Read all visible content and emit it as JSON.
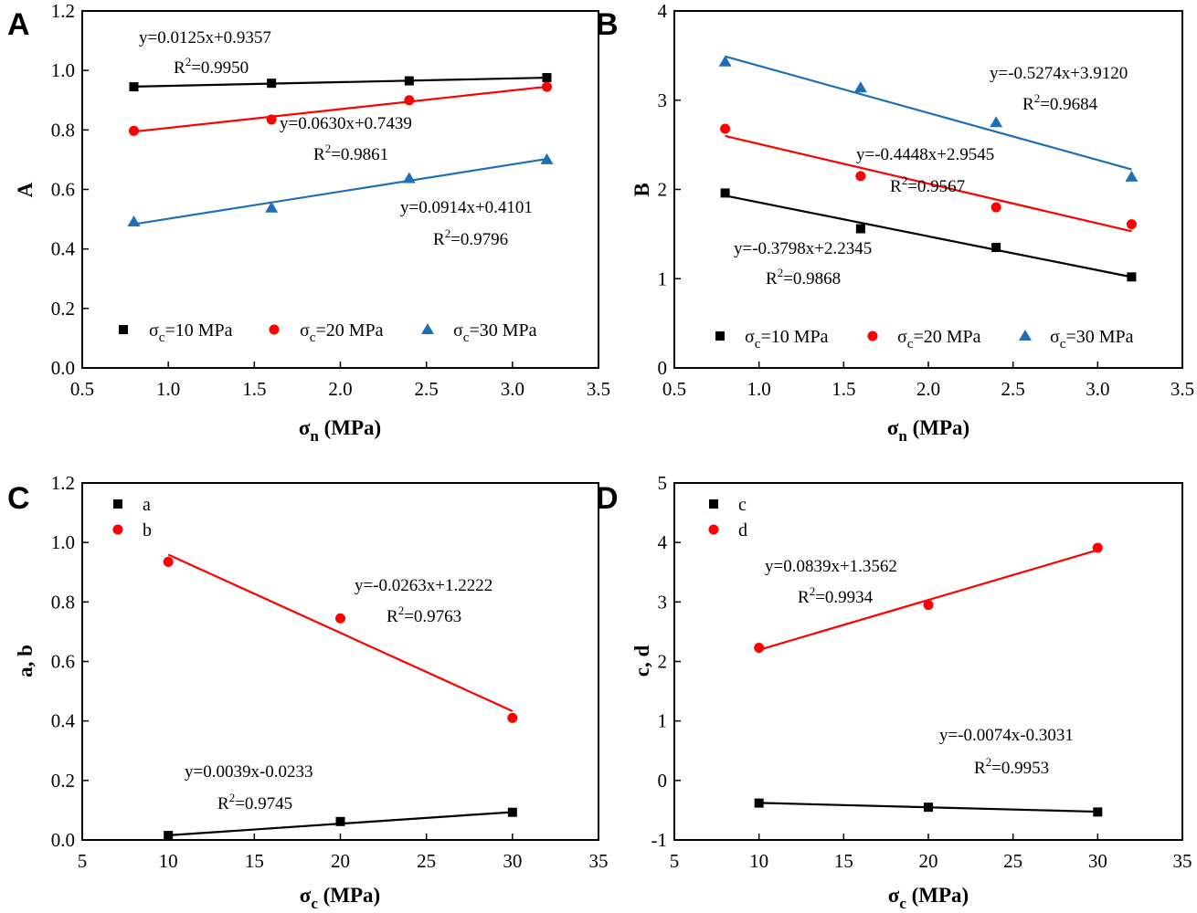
{
  "chart_data": [
    {
      "type": "scatter",
      "panel": "A",
      "xlabel": "σn (MPa)",
      "ylabel": "A",
      "xlim": [
        0.5,
        3.5
      ],
      "ylim": [
        0.0,
        1.2
      ],
      "xticks": [
        "0.5",
        "1.0",
        "1.5",
        "2.0",
        "2.5",
        "3.0",
        "3.5"
      ],
      "yticks": [
        "0.0",
        "0.2",
        "0.4",
        "0.6",
        "0.8",
        "1.0",
        "1.2"
      ],
      "legend_position": "bottom",
      "series": [
        {
          "name": "σc=10 MPa",
          "sub": "c",
          "pre": "σ",
          "post": "=10 MPa",
          "color": "#000000",
          "marker": "square",
          "x": [
            0.8,
            1.6,
            2.4,
            3.2
          ],
          "values": [
            0.945,
            0.957,
            0.965,
            0.976
          ],
          "fit": {
            "slope": 0.0125,
            "intercept": 0.9357
          },
          "equation": "y=0.0125x+0.9357",
          "r2": "=0.9950"
        },
        {
          "name": "σc=20 MPa",
          "sub": "c",
          "pre": "σ",
          "post": "=20 MPa",
          "color": "#ff0000",
          "marker": "circle",
          "x": [
            0.8,
            1.6,
            2.4,
            3.2
          ],
          "values": [
            0.797,
            0.835,
            0.9,
            0.945
          ],
          "fit": {
            "slope": 0.063,
            "intercept": 0.7439
          },
          "equation": "y=0.0630x+0.7439",
          "r2": "=0.9861"
        },
        {
          "name": "σc=30 MPa",
          "sub": "c",
          "pre": "σ",
          "post": "=30 MPa",
          "color": "#1f6fb4",
          "marker": "triangle",
          "x": [
            0.8,
            1.6,
            2.4,
            3.2
          ],
          "values": [
            0.491,
            0.538,
            0.637,
            0.7
          ],
          "fit": {
            "slope": 0.0914,
            "intercept": 0.4101
          },
          "equation": "y=0.0914x+0.4101",
          "r2": "=0.9796"
        }
      ]
    },
    {
      "type": "scatter",
      "panel": "B",
      "xlabel": "σn (MPa)",
      "ylabel": "B",
      "xlim": [
        0.5,
        3.5
      ],
      "ylim": [
        0,
        4
      ],
      "xticks": [
        "0.5",
        "1.0",
        "1.5",
        "2.0",
        "2.5",
        "3.0",
        "3.5"
      ],
      "yticks": [
        "0",
        "1",
        "2",
        "3",
        "4"
      ],
      "legend_position": "bottom",
      "series": [
        {
          "name": "σc=10 MPa",
          "sub": "c",
          "pre": "σ",
          "post": "=10 MPa",
          "color": "#000000",
          "marker": "square",
          "x": [
            0.8,
            1.6,
            2.4,
            3.2
          ],
          "values": [
            1.96,
            1.56,
            1.35,
            1.02
          ],
          "fit": {
            "slope": -0.3798,
            "intercept": 2.2345
          },
          "equation": "y=-0.3798x+2.2345",
          "r2": "=0.9868"
        },
        {
          "name": "σc=20 MPa",
          "sub": "c",
          "pre": "σ",
          "post": "=20 MPa",
          "color": "#ff0000",
          "marker": "circle",
          "x": [
            0.8,
            1.6,
            2.4,
            3.2
          ],
          "values": [
            2.68,
            2.15,
            1.8,
            1.61
          ],
          "fit": {
            "slope": -0.4448,
            "intercept": 2.9545
          },
          "equation": "y=-0.4448x+2.9545",
          "r2": "=0.9567"
        },
        {
          "name": "σc=30 MPa",
          "sub": "c",
          "pre": "σ",
          "post": "=30 MPa",
          "color": "#1f6fb4",
          "marker": "triangle",
          "x": [
            0.8,
            1.6,
            2.4,
            3.2
          ],
          "values": [
            3.43,
            3.14,
            2.75,
            2.14
          ],
          "fit": {
            "slope": -0.5274,
            "intercept": 3.912
          },
          "equation": "y=-0.5274x+3.9120",
          "r2": "=0.9684"
        }
      ]
    },
    {
      "type": "scatter",
      "panel": "C",
      "xlabel": "σc (MPa)",
      "ylabel": "a, b",
      "xlim": [
        5,
        35
      ],
      "ylim": [
        0.0,
        1.2
      ],
      "xticks": [
        "5",
        "10",
        "15",
        "20",
        "25",
        "30",
        "35"
      ],
      "yticks": [
        "0.0",
        "0.2",
        "0.4",
        "0.6",
        "0.8",
        "1.0",
        "1.2"
      ],
      "legend_position": "top-left",
      "series": [
        {
          "name": "a",
          "color": "#000000",
          "marker": "square",
          "x": [
            10,
            20,
            30
          ],
          "values": [
            0.015,
            0.062,
            0.093
          ],
          "fit": {
            "slope": 0.0039,
            "intercept": -0.0233
          },
          "equation": "y=0.0039x-0.0233",
          "r2": "=0.9745"
        },
        {
          "name": "b",
          "color": "#ff0000",
          "marker": "circle",
          "x": [
            10,
            20,
            30
          ],
          "values": [
            0.935,
            0.745,
            0.41
          ],
          "fit": {
            "slope": -0.0263,
            "intercept": 1.2222
          },
          "equation": "y=-0.0263x+1.2222",
          "r2": "=0.9763"
        }
      ]
    },
    {
      "type": "scatter",
      "panel": "D",
      "xlabel": "σc (MPa)",
      "ylabel": "c, d",
      "xlim": [
        5,
        35
      ],
      "ylim": [
        -1,
        5
      ],
      "xticks": [
        "5",
        "10",
        "15",
        "20",
        "25",
        "30",
        "35"
      ],
      "yticks": [
        "-1",
        "0",
        "1",
        "2",
        "3",
        "4",
        "5"
      ],
      "legend_position": "top-left",
      "series": [
        {
          "name": "c",
          "color": "#000000",
          "marker": "square",
          "x": [
            10,
            20,
            30
          ],
          "values": [
            -0.38,
            -0.45,
            -0.53
          ],
          "fit": {
            "slope": -0.0074,
            "intercept": -0.3031
          },
          "equation": "y=-0.0074x-0.3031",
          "r2": "=0.9953"
        },
        {
          "name": "d",
          "color": "#ff0000",
          "marker": "circle",
          "x": [
            10,
            20,
            30
          ],
          "values": [
            2.23,
            2.95,
            3.91
          ],
          "fit": {
            "slope": 0.0839,
            "intercept": 1.3562
          },
          "equation": "y=0.0839x+1.3562",
          "r2": "=0.9934"
        }
      ]
    }
  ]
}
